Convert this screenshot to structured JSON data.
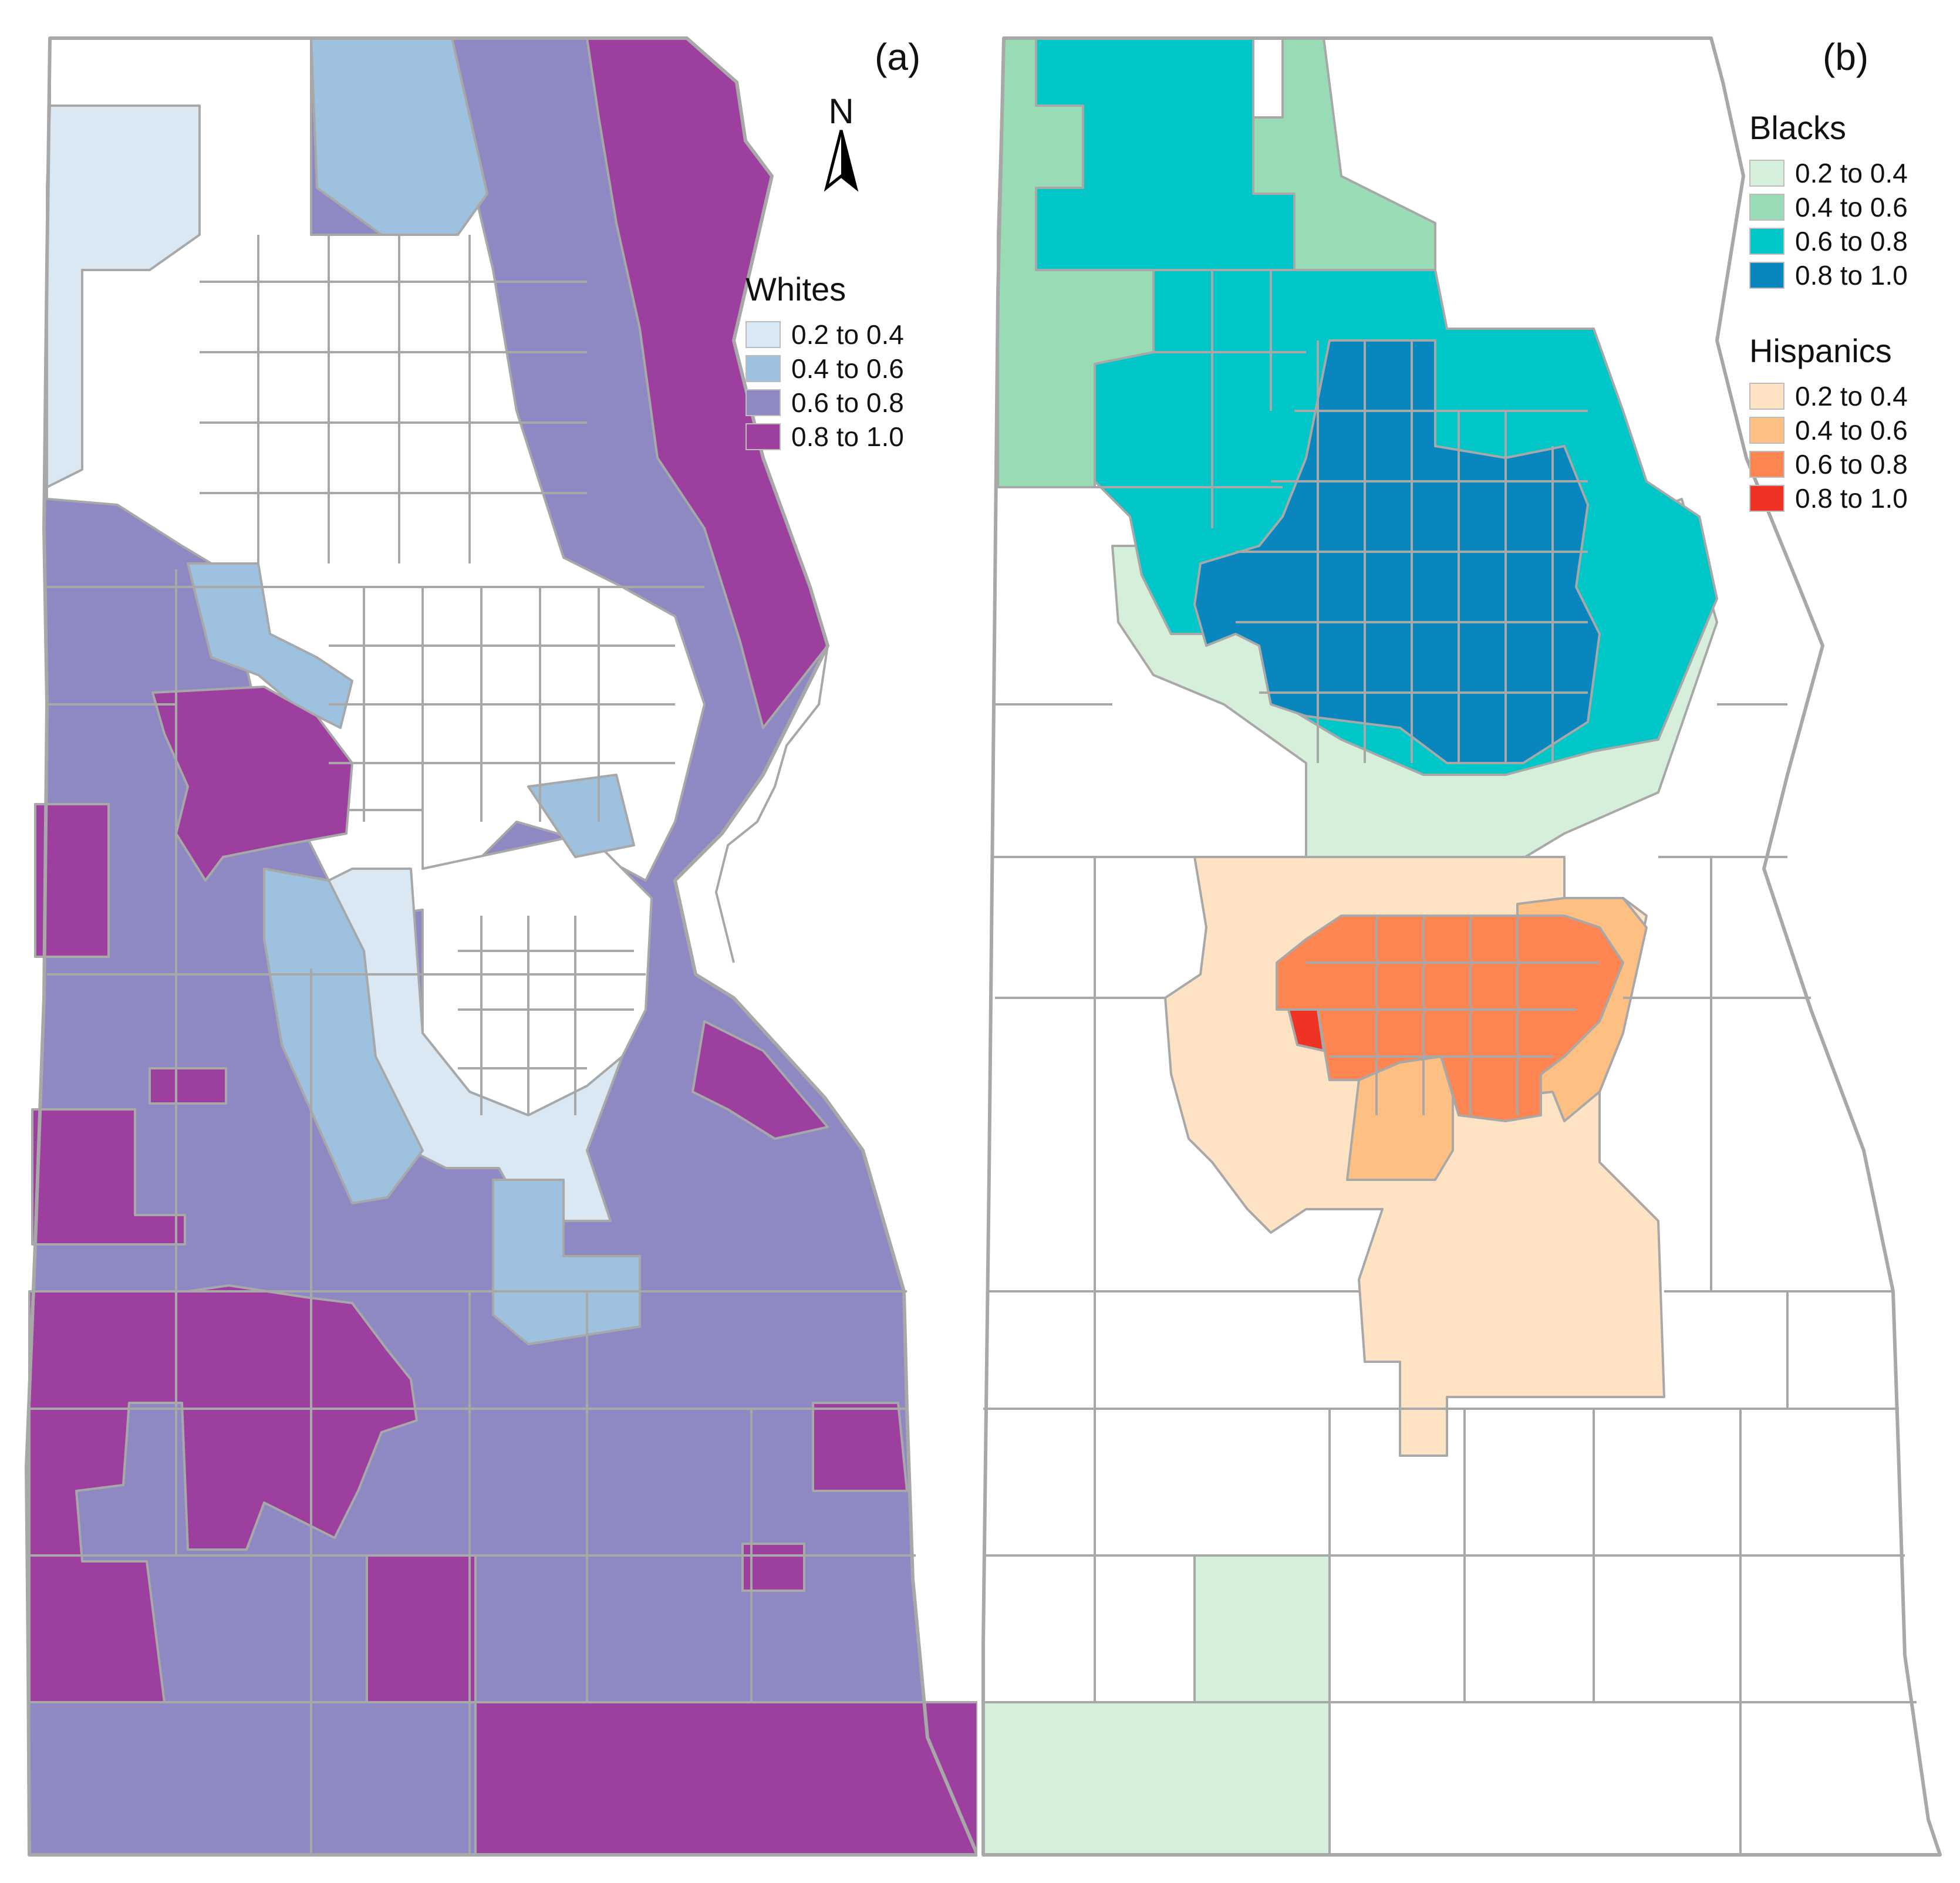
{
  "panel_a": {
    "label": "(a)",
    "north_label": "N",
    "legend": {
      "title": "Whites",
      "items": [
        {
          "label": "0.2 to 0.4",
          "color": "#d9e8f3"
        },
        {
          "label": "0.4 to 0.6",
          "color": "#9dc1de"
        },
        {
          "label": "0.6 to 0.8",
          "color": "#8f89c3"
        },
        {
          "label": "0.8 to 1.0",
          "color": "#9c3f9e"
        }
      ]
    }
  },
  "panel_b": {
    "label": "(b)",
    "legend_blacks": {
      "title": "Blacks",
      "items": [
        {
          "label": "0.2 to 0.4",
          "color": "#d5efda"
        },
        {
          "label": "0.4 to 0.6",
          "color": "#99dbb4"
        },
        {
          "label": "0.6 to 0.8",
          "color": "#00c6c8"
        },
        {
          "label": "0.8 to 1.0",
          "color": "#0a86be"
        }
      ]
    },
    "legend_hispanics": {
      "title": "Hispanics",
      "items": [
        {
          "label": "0.2 to 0.4",
          "color": "#fde3c4"
        },
        {
          "label": "0.4 to 0.6",
          "color": "#fdbf82"
        },
        {
          "label": "0.6 to 0.8",
          "color": "#fd8552"
        },
        {
          "label": "0.8 to 1.0",
          "color": "#ee3224"
        }
      ]
    }
  }
}
